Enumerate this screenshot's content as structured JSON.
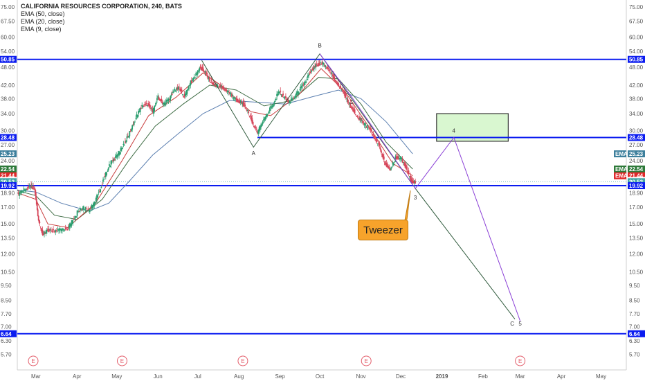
{
  "legend": {
    "title": "CALIFORNIA RESOURCES CORPORATION, 240, BATS",
    "items": [
      "EMA (50, close)",
      "EMA (20, close)",
      "EMA (9, close)"
    ]
  },
  "callout": {
    "text": "Tweezer"
  },
  "colors": {
    "hline": "#0b1cf0",
    "ema50": "#5b7fb0",
    "ema20": "#3f6d45",
    "ema9": "#c83c3c",
    "up": "#2a9d6e",
    "down": "#d6465a",
    "zone_fill": "#d9f7d0",
    "zone_border": "#333333",
    "path_green": "#2f5a3c",
    "path_purple": "#8a3fd6",
    "tag_ema50": "#3d7f9c",
    "tag_ema20": "#2e7a3a",
    "tag_ema9": "#e0282a",
    "tag_price": "#3fa3a3",
    "tag_hline": "#0b1cf0"
  },
  "chart_data": {
    "type": "candlestick",
    "y_scale": "log",
    "ylim": [
      5.4,
      77
    ],
    "y_ticks": [
      "75.00",
      "67.50",
      "60.00",
      "54.00",
      "48.00",
      "42.00",
      "38.00",
      "34.00",
      "30.00",
      "27.00",
      "24.00",
      "21.00",
      "18.90",
      "17.00",
      "15.00",
      "13.50",
      "12.00",
      "10.50",
      "9.50",
      "8.50",
      "7.70",
      "7.00",
      "6.30",
      "5.70"
    ],
    "x_ticks": [
      {
        "label": "Mar",
        "date": "2018-03-01"
      },
      {
        "label": "Apr",
        "date": "2018-04-01"
      },
      {
        "label": "May",
        "date": "2018-05-01"
      },
      {
        "label": "Jun",
        "date": "2018-06-01"
      },
      {
        "label": "Jul",
        "date": "2018-07-01"
      },
      {
        "label": "Aug",
        "date": "2018-08-01"
      },
      {
        "label": "Sep",
        "date": "2018-09-01"
      },
      {
        "label": "Oct",
        "date": "2018-10-01"
      },
      {
        "label": "Nov",
        "date": "2018-11-01"
      },
      {
        "label": "Dec",
        "date": "2018-12-01"
      },
      {
        "label": "2019",
        "date": "2019-01-01"
      },
      {
        "label": "Feb",
        "date": "2019-02-01"
      },
      {
        "label": "Mar",
        "date": "2019-03-01"
      },
      {
        "label": "Apr",
        "date": "2019-04-01"
      },
      {
        "label": "May",
        "date": "2019-05-01"
      }
    ],
    "x_range": [
      "2018-02-15",
      "2019-05-20"
    ],
    "horizontal_lines": [
      50.85,
      28.48,
      19.92,
      6.64
    ],
    "price_tags": [
      {
        "value": 50.85,
        "label": "50.85",
        "kind": "hline"
      },
      {
        "value": 28.48,
        "label": "28.48",
        "kind": "hline"
      },
      {
        "value": 25.23,
        "label": "25.23",
        "kind": "ema50",
        "prefix": "EMA"
      },
      {
        "value": 22.54,
        "label": "22.54",
        "kind": "ema20",
        "prefix": "EMA"
      },
      {
        "value": 21.44,
        "label": "21.44",
        "kind": "ema9",
        "prefix": "EMA"
      },
      {
        "value": 20.71,
        "label": "20.71",
        "kind": "plain"
      },
      {
        "value": 20.52,
        "label": "20.52",
        "kind": "price"
      },
      {
        "value": 19.92,
        "label": "19.92",
        "kind": "hline"
      },
      {
        "value": 6.64,
        "label": "6.64",
        "kind": "hline"
      }
    ],
    "last_price": 20.52,
    "price_series": [
      [
        "2018-02-15",
        18.6
      ],
      [
        "2018-02-20",
        19.3
      ],
      [
        "2018-02-25",
        19.8
      ],
      [
        "2018-02-28",
        19.5
      ],
      [
        "2018-03-03",
        15.5
      ],
      [
        "2018-03-06",
        13.9
      ],
      [
        "2018-03-10",
        14.3
      ],
      [
        "2018-03-15",
        14.2
      ],
      [
        "2018-03-20",
        14.4
      ],
      [
        "2018-03-25",
        14.5
      ],
      [
        "2018-03-28",
        15.2
      ],
      [
        "2018-04-02",
        16.6
      ],
      [
        "2018-04-06",
        16.9
      ],
      [
        "2018-04-10",
        16.6
      ],
      [
        "2018-04-14",
        17.5
      ],
      [
        "2018-04-18",
        19.2
      ],
      [
        "2018-04-22",
        21.5
      ],
      [
        "2018-04-26",
        23.5
      ],
      [
        "2018-04-30",
        24.5
      ],
      [
        "2018-05-04",
        26.0
      ],
      [
        "2018-05-08",
        28.0
      ],
      [
        "2018-05-12",
        30.5
      ],
      [
        "2018-05-16",
        33.5
      ],
      [
        "2018-05-20",
        36.0
      ],
      [
        "2018-05-24",
        36.5
      ],
      [
        "2018-05-28",
        34.5
      ],
      [
        "2018-06-01",
        38.5
      ],
      [
        "2018-06-05",
        36.5
      ],
      [
        "2018-06-09",
        37.5
      ],
      [
        "2018-06-13",
        40.5
      ],
      [
        "2018-06-17",
        41.0
      ],
      [
        "2018-06-21",
        38.5
      ],
      [
        "2018-06-25",
        42.5
      ],
      [
        "2018-06-29",
        45.0
      ],
      [
        "2018-07-03",
        48.0
      ],
      [
        "2018-07-06",
        46.5
      ],
      [
        "2018-07-10",
        43.5
      ],
      [
        "2018-07-14",
        42.0
      ],
      [
        "2018-07-18",
        41.5
      ],
      [
        "2018-07-22",
        40.5
      ],
      [
        "2018-07-26",
        39.0
      ],
      [
        "2018-07-30",
        37.5
      ],
      [
        "2018-08-03",
        37.0
      ],
      [
        "2018-08-07",
        35.0
      ],
      [
        "2018-08-11",
        32.0
      ],
      [
        "2018-08-15",
        29.5
      ],
      [
        "2018-08-19",
        32.0
      ],
      [
        "2018-08-23",
        34.5
      ],
      [
        "2018-08-27",
        36.5
      ],
      [
        "2018-08-31",
        40.0
      ],
      [
        "2018-09-04",
        38.5
      ],
      [
        "2018-09-08",
        37.0
      ],
      [
        "2018-09-12",
        38.5
      ],
      [
        "2018-09-16",
        40.5
      ],
      [
        "2018-09-20",
        43.0
      ],
      [
        "2018-09-24",
        46.5
      ],
      [
        "2018-09-28",
        48.5
      ],
      [
        "2018-10-02",
        49.5
      ],
      [
        "2018-10-06",
        48.0
      ],
      [
        "2018-10-10",
        45.5
      ],
      [
        "2018-10-14",
        42.5
      ],
      [
        "2018-10-18",
        40.5
      ],
      [
        "2018-10-22",
        37.0
      ],
      [
        "2018-10-26",
        35.0
      ],
      [
        "2018-10-30",
        33.0
      ],
      [
        "2018-11-03",
        31.5
      ],
      [
        "2018-11-07",
        30.5
      ],
      [
        "2018-11-11",
        28.5
      ],
      [
        "2018-11-15",
        26.5
      ],
      [
        "2018-11-19",
        23.5
      ],
      [
        "2018-11-23",
        22.5
      ],
      [
        "2018-11-27",
        24.5
      ],
      [
        "2018-12-01",
        24.5
      ],
      [
        "2018-12-05",
        22.8
      ],
      [
        "2018-12-09",
        20.5
      ],
      [
        "2018-12-12",
        20.5
      ]
    ],
    "ema50": [
      [
        "2018-02-15",
        19.3
      ],
      [
        "2018-03-01",
        19.0
      ],
      [
        "2018-03-20",
        17.5
      ],
      [
        "2018-04-10",
        16.5
      ],
      [
        "2018-04-25",
        17.5
      ],
      [
        "2018-05-10",
        20.5
      ],
      [
        "2018-05-28",
        25.0
      ],
      [
        "2018-06-15",
        29.0
      ],
      [
        "2018-07-05",
        34.0
      ],
      [
        "2018-07-25",
        37.5
      ],
      [
        "2018-08-15",
        37.0
      ],
      [
        "2018-09-05",
        36.5
      ],
      [
        "2018-09-25",
        38.5
      ],
      [
        "2018-10-15",
        40.5
      ],
      [
        "2018-11-01",
        38.0
      ],
      [
        "2018-11-20",
        32.0
      ],
      [
        "2018-12-10",
        25.23
      ]
    ],
    "ema20": [
      [
        "2018-02-15",
        19.2
      ],
      [
        "2018-03-01",
        18.5
      ],
      [
        "2018-03-15",
        16.0
      ],
      [
        "2018-04-01",
        15.5
      ],
      [
        "2018-04-20",
        18.0
      ],
      [
        "2018-05-10",
        24.0
      ],
      [
        "2018-05-30",
        31.0
      ],
      [
        "2018-06-20",
        36.5
      ],
      [
        "2018-07-10",
        42.0
      ],
      [
        "2018-07-30",
        40.5
      ],
      [
        "2018-08-20",
        36.0
      ],
      [
        "2018-09-10",
        37.5
      ],
      [
        "2018-09-30",
        44.5
      ],
      [
        "2018-10-15",
        44.0
      ],
      [
        "2018-11-01",
        36.5
      ],
      [
        "2018-11-20",
        27.5
      ],
      [
        "2018-12-10",
        22.54
      ]
    ],
    "ema9": [
      [
        "2018-02-15",
        18.9
      ],
      [
        "2018-03-01",
        18.0
      ],
      [
        "2018-03-10",
        15.0
      ],
      [
        "2018-03-25",
        14.6
      ],
      [
        "2018-04-15",
        17.5
      ],
      [
        "2018-05-05",
        24.0
      ],
      [
        "2018-05-25",
        33.5
      ],
      [
        "2018-06-15",
        38.5
      ],
      [
        "2018-07-05",
        46.0
      ],
      [
        "2018-07-20",
        41.5
      ],
      [
        "2018-08-10",
        34.5
      ],
      [
        "2018-08-25",
        33.5
      ],
      [
        "2018-09-15",
        39.0
      ],
      [
        "2018-10-02",
        47.5
      ],
      [
        "2018-10-20",
        40.0
      ],
      [
        "2018-11-10",
        29.5
      ],
      [
        "2018-11-25",
        23.5
      ],
      [
        "2018-12-10",
        21.44
      ]
    ],
    "green_path": [
      [
        "2018-07-04",
        50.5
      ],
      [
        "2018-08-12",
        26.5
      ],
      [
        "2018-10-01",
        53.0
      ],
      [
        "2018-12-12",
        19.5
      ],
      [
        "2019-02-25",
        7.4
      ]
    ],
    "purple_path": [
      [
        "2018-10-01",
        53.0
      ],
      [
        "2018-10-25",
        38.5
      ],
      [
        "2018-12-12",
        19.5
      ],
      [
        "2019-01-10",
        28.48
      ],
      [
        "2019-03-01",
        7.3
      ]
    ],
    "zone": {
      "x": [
        "2018-12-28",
        "2019-02-20"
      ],
      "y": [
        27.7,
        34.0
      ]
    },
    "wave_labels": [
      {
        "text": "A",
        "x": "2018-08-12",
        "y": 25.0
      },
      {
        "text": "B",
        "x": "2018-10-01",
        "y": 55.5
      },
      {
        "text": "1",
        "x": "2018-10-25",
        "y": 36.5
      },
      {
        "text": "3",
        "x": "2018-12-12",
        "y": 18.0
      },
      {
        "text": "4",
        "x": "2019-01-10",
        "y": 29.5
      },
      {
        "text": "C",
        "x": "2019-02-23",
        "y": 7.05
      },
      {
        "text": "5",
        "x": "2019-03-01",
        "y": 7.05
      }
    ],
    "event_markers": {
      "label": "E",
      "dates": [
        "2018-02-27",
        "2018-05-05",
        "2018-08-04",
        "2018-11-05",
        "2019-03-01"
      ]
    }
  }
}
